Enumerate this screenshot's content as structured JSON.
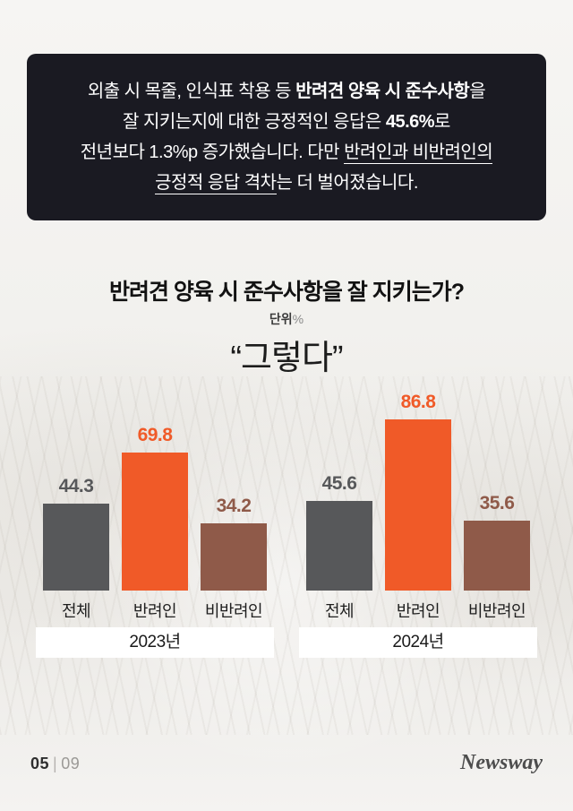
{
  "intro": {
    "l1_a": "외출 시 목줄, 인식표 착용 등 ",
    "l1_b": "반려견 양육 시 준수사항",
    "l1_c": "을",
    "l2_a": "잘 지키는지에 대한 긍정적인 응답은 ",
    "l2_b": "45.6%",
    "l2_c": "로",
    "l3_a": "전년보다 1.3%p 증가했습니다. 다만 ",
    "l3_b": "반려인과 비반려인의",
    "l4_a": "긍정적 응답 격차",
    "l4_b": "는 더 벌어졌습니다."
  },
  "chart": {
    "title": "반려견 양육 시 준수사항을 잘 지키는가?",
    "unit_label": "단위",
    "unit_symbol": "%",
    "quote": "“그렇다”"
  },
  "chart_data": {
    "type": "bar",
    "title": "반려견 양육 시 준수사항을 잘 지키는가?",
    "ylabel": "%",
    "ylim": [
      0,
      100
    ],
    "categories": [
      "전체",
      "반려인",
      "비반려인"
    ],
    "groups": [
      {
        "label": "2023년",
        "values": [
          44.3,
          69.8,
          34.2
        ]
      },
      {
        "label": "2024년",
        "values": [
          45.6,
          86.8,
          35.6
        ]
      }
    ],
    "colors": [
      "#57585a",
      "#f05a28",
      "#8f5a49"
    ]
  },
  "footer": {
    "page_current": "05",
    "divider": "|",
    "page_total": "09",
    "brand": "Newsway"
  }
}
